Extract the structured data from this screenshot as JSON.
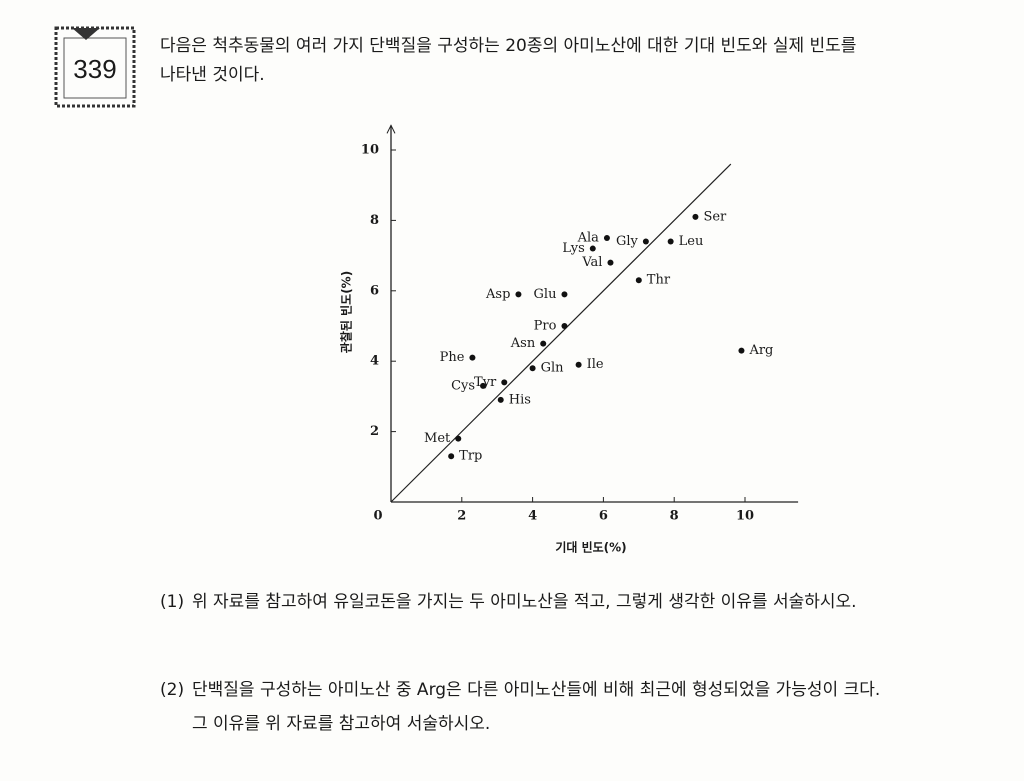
{
  "badge": "339",
  "intro": {
    "lines": [
      "다음은 척추동물의 여러 가지 단백질을 구성하는 20종의 아미노산에 대한 기대 빈도와 실제 빈도를",
      "나타낸 것이다."
    ]
  },
  "chart_data": {
    "type": "scatter",
    "x_label": "기대 빈도(%)",
    "y_label": "관찰된 빈도(%)",
    "xlim": [
      0,
      11.5
    ],
    "ylim": [
      0,
      10.7
    ],
    "xticks": [
      0,
      2,
      4,
      6,
      8,
      10
    ],
    "yticks": [
      2,
      4,
      6,
      8,
      10
    ],
    "diagonal": true,
    "color": "#111111",
    "points": [
      "Ser",
      "Ala",
      "Gly",
      "Leu",
      "Lys",
      "Val",
      "Thr",
      "Asp",
      "Glu",
      "Pro",
      "Asn",
      "Arg",
      "Phe",
      "Ile",
      "Gln",
      "Tyr",
      "Cys",
      "His",
      "Met",
      "Trp"
    ],
    "x": [
      8.6,
      6.1,
      7.2,
      7.9,
      5.7,
      6.2,
      7.0,
      3.6,
      4.9,
      4.9,
      4.3,
      9.9,
      2.3,
      5.3,
      4.0,
      3.2,
      2.6,
      3.1,
      1.9,
      1.7
    ],
    "y": [
      8.1,
      7.5,
      7.4,
      7.4,
      7.2,
      6.8,
      6.3,
      5.9,
      5.9,
      5.0,
      4.5,
      4.3,
      4.1,
      3.9,
      3.8,
      3.4,
      3.3,
      2.9,
      1.8,
      1.3
    ]
  },
  "questions": [
    {
      "number": "(1)",
      "lines": [
        "위 자료를 참고하여 유일코돈을 가지는 두 아미노산을 적고, 그렇게 생각한 이유를 서술하시오."
      ]
    },
    {
      "number": "(2)",
      "lines": [
        "단백질을 구성하는 아미노산 중 Arg은 다른 아미노산들에 비해 최근에 형성되었을 가능성이 크다.",
        "그 이유를 위 자료를 참고하여 서술하시오."
      ]
    }
  ]
}
